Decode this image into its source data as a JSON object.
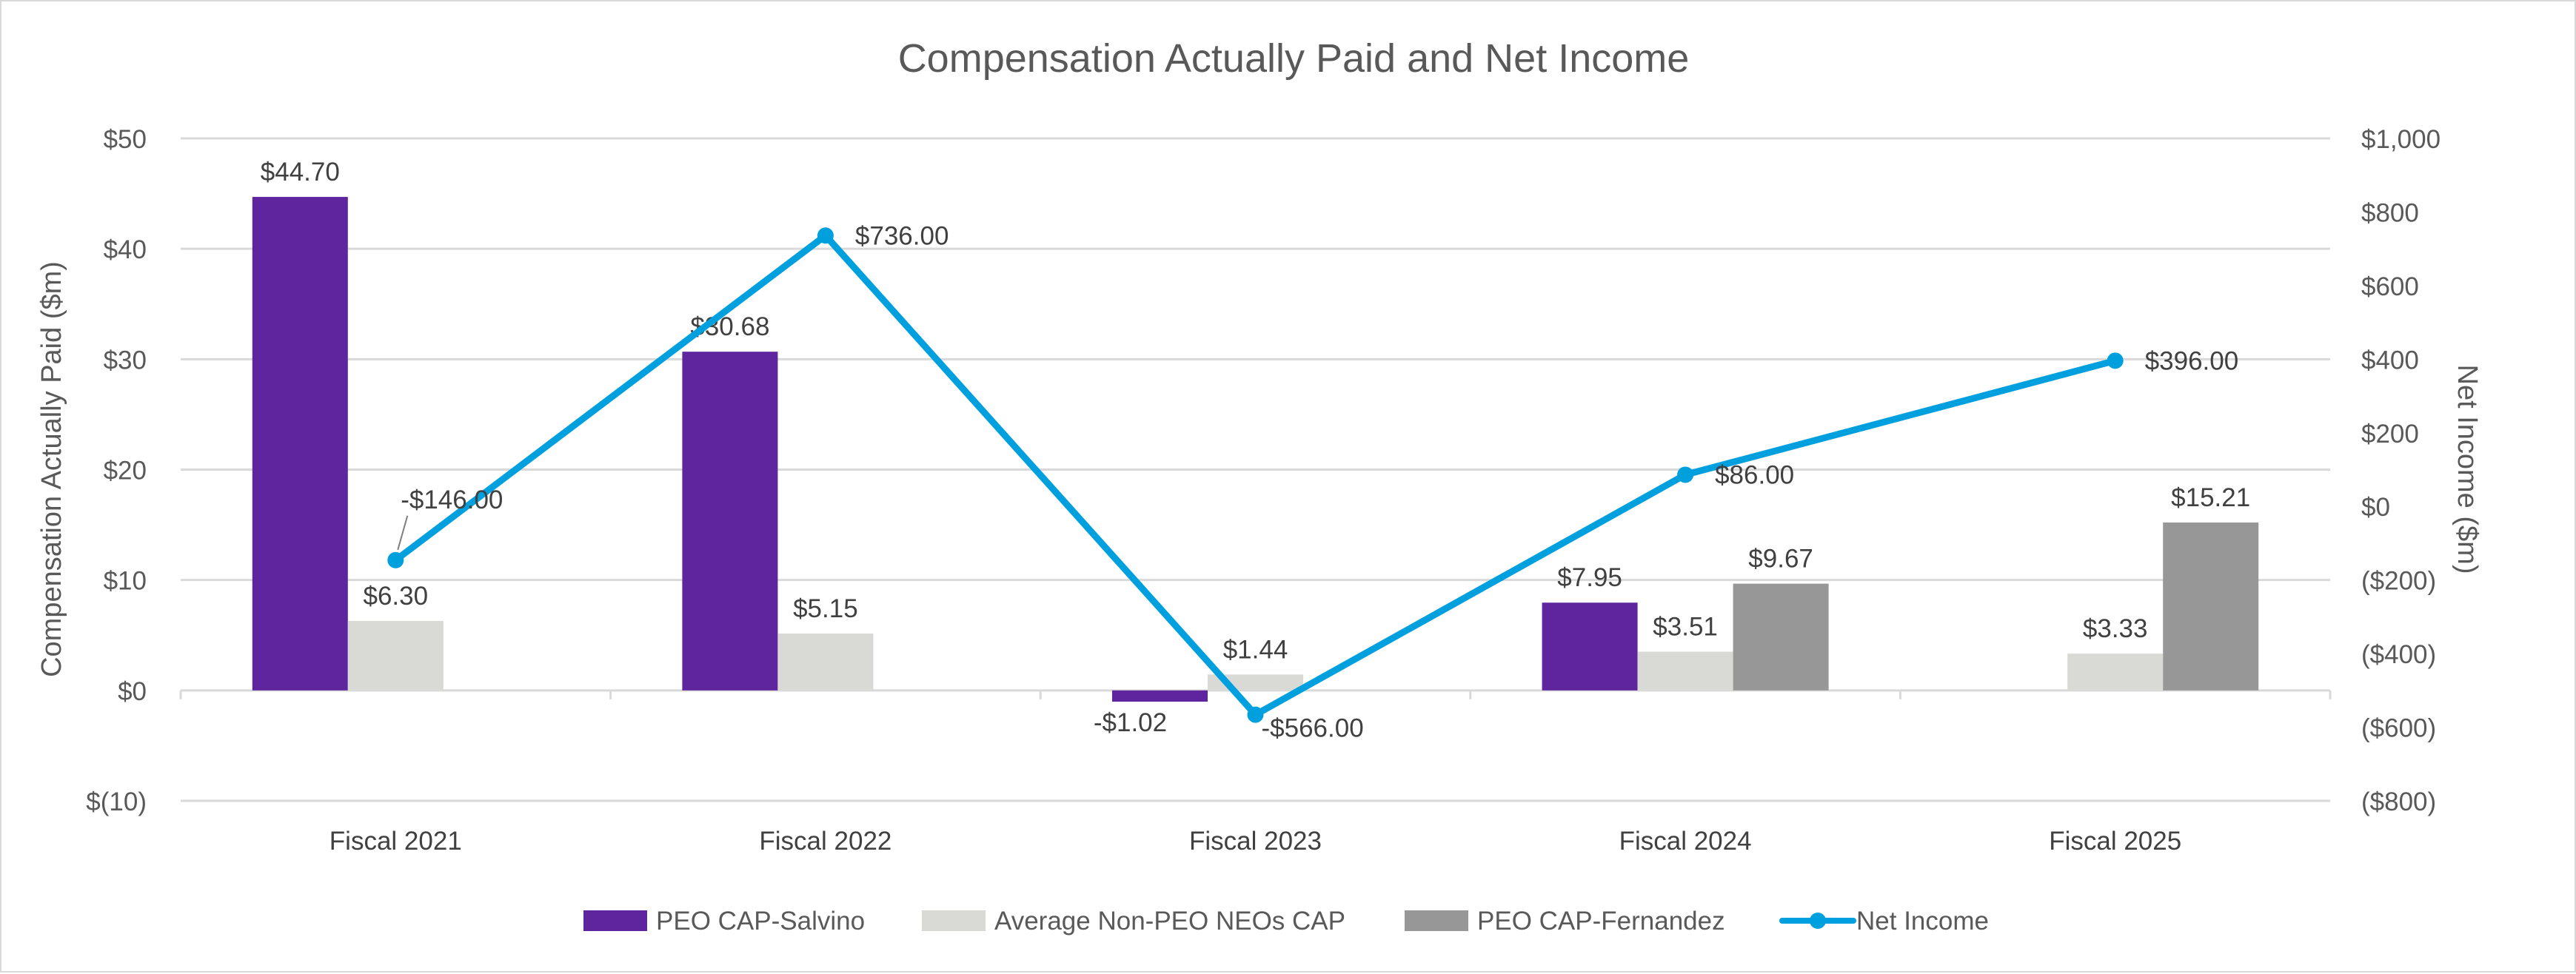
{
  "chart_data": {
    "type": "bar",
    "title": "Compensation Actually Paid and Net Income",
    "categories": [
      "Fiscal 2021",
      "Fiscal 2022",
      "Fiscal 2023",
      "Fiscal 2024",
      "Fiscal 2025"
    ],
    "ylabel": "Compensation Actually Paid ($m)",
    "y2label": "Net Income ($m)",
    "ylim": [
      -10,
      50
    ],
    "y2lim": [
      -800,
      1000
    ],
    "yticks": [
      {
        "value": 50,
        "label": "$50"
      },
      {
        "value": 40,
        "label": "$40"
      },
      {
        "value": 30,
        "label": "$30"
      },
      {
        "value": 20,
        "label": "$20"
      },
      {
        "value": 10,
        "label": "$10"
      },
      {
        "value": 0,
        "label": "$0"
      },
      {
        "value": -10,
        "label": "$(10)"
      }
    ],
    "y2ticks": [
      {
        "value": 1000,
        "label": "$1,000"
      },
      {
        "value": 800,
        "label": "$800"
      },
      {
        "value": 600,
        "label": "$600"
      },
      {
        "value": 400,
        "label": "$400"
      },
      {
        "value": 200,
        "label": "$200"
      },
      {
        "value": 0,
        "label": "$0"
      },
      {
        "value": -200,
        "label": "($200)"
      },
      {
        "value": -400,
        "label": "($400)"
      },
      {
        "value": -600,
        "label": "($600)"
      },
      {
        "value": -800,
        "label": "($800)"
      }
    ],
    "grid": true,
    "legend_position": "bottom",
    "series": [
      {
        "name": "PEO CAP-Salvino",
        "kind": "bar",
        "axis": "left",
        "color": "#5f259f",
        "values": [
          44.7,
          30.68,
          -1.02,
          7.95,
          null
        ],
        "labels": [
          "$44.70",
          "$30.68",
          "-$1.02",
          "$7.95",
          null
        ]
      },
      {
        "name": "Average Non-PEO NEOs CAP",
        "kind": "bar",
        "axis": "left",
        "color": "#d9d9d6",
        "values": [
          6.3,
          5.15,
          1.44,
          3.51,
          3.33
        ],
        "labels": [
          "$6.30",
          "$5.15",
          "$1.44",
          "$3.51",
          "$3.33"
        ]
      },
      {
        "name": "PEO CAP-Fernandez",
        "kind": "bar",
        "axis": "left",
        "color": "#979797",
        "values": [
          null,
          null,
          null,
          9.67,
          15.21
        ],
        "labels": [
          null,
          null,
          null,
          "$9.67",
          "$15.21"
        ]
      },
      {
        "name": "Net Income",
        "kind": "line",
        "axis": "right",
        "color": "#00a0df",
        "values": [
          -146.0,
          736.0,
          -566.0,
          86.0,
          396.0
        ],
        "labels": [
          "-$146.00",
          "$736.00",
          "-$566.00",
          "$86.00",
          "$396.00"
        ]
      }
    ]
  }
}
